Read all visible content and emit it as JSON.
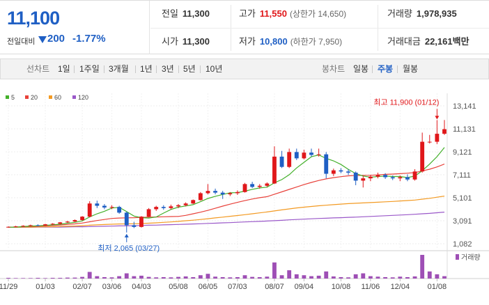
{
  "quote": {
    "price": "11,100",
    "change_label": "전일대비",
    "change_amount": "200",
    "change_rate": "-1.77%",
    "prev_label": "전일",
    "prev_value": "11,300",
    "open_label": "시가",
    "open_value": "11,300",
    "high_label": "고가",
    "high_value": "11,550",
    "upper_limit": "(상한가 14,650)",
    "low_label": "저가",
    "low_value": "10,800",
    "lower_limit": "(하한가 7,950)",
    "volume_label": "거래량",
    "volume_value": "1,978,935",
    "amount_label": "거래대금",
    "amount_value": "22,161",
    "amount_unit": "백만"
  },
  "toolbar": {
    "line_title": "선차트",
    "line_periods": [
      "1일",
      "1주일",
      "3개월",
      "1년",
      "3년",
      "5년",
      "10년"
    ],
    "candle_title": "봉차트",
    "candle_periods": [
      "일봉",
      "주봉",
      "월봉"
    ],
    "candle_active": "주봉"
  },
  "colors": {
    "up": "#e0171a",
    "down": "#1f5fc4",
    "ma5": "#43b02a",
    "ma20": "#e8413a",
    "ma60": "#f39a22",
    "ma120": "#9a58c9",
    "volume": "#9e4fb5"
  },
  "chart_data": {
    "type": "candlestick",
    "legend": [
      {
        "name": "5",
        "color": "#43b02a"
      },
      {
        "name": "20",
        "color": "#e8413a"
      },
      {
        "name": "60",
        "color": "#f39a22"
      },
      {
        "name": "120",
        "color": "#9a58c9"
      }
    ],
    "y_ticks": [
      13141,
      11131,
      9121,
      7111,
      5101,
      3091,
      1082
    ],
    "ylim": [
      1082,
      13141
    ],
    "x_labels": [
      "11/29",
      "01/03",
      "02/07",
      "03/06",
      "04/03",
      "05/08",
      "06/05",
      "07/03",
      "08/07",
      "09/04",
      "10/08",
      "11/06",
      "12/04",
      "01/08"
    ],
    "x_label_index": [
      0,
      5,
      10,
      14,
      18,
      23,
      27,
      31,
      36,
      40,
      45,
      49,
      53,
      58
    ],
    "annotation_high": {
      "text": "최고 11,900 (01/12)",
      "index": 58,
      "value": 11900
    },
    "annotation_low": {
      "text": "최저 2,065 (03/27)",
      "index": 16,
      "value": 2065
    },
    "volume_label": "거래량",
    "candles": [
      {
        "o": 2520,
        "h": 2600,
        "l": 2480,
        "c": 2560
      },
      {
        "o": 2560,
        "h": 2650,
        "l": 2520,
        "c": 2600
      },
      {
        "o": 2600,
        "h": 2700,
        "l": 2550,
        "c": 2650
      },
      {
        "o": 2650,
        "h": 2750,
        "l": 2600,
        "c": 2700
      },
      {
        "o": 2700,
        "h": 2780,
        "l": 2620,
        "c": 2680
      },
      {
        "o": 2680,
        "h": 2820,
        "l": 2650,
        "c": 2780
      },
      {
        "o": 2780,
        "h": 2880,
        "l": 2720,
        "c": 2830
      },
      {
        "o": 2830,
        "h": 2980,
        "l": 2780,
        "c": 2950
      },
      {
        "o": 2950,
        "h": 3080,
        "l": 2900,
        "c": 3020
      },
      {
        "o": 3020,
        "h": 3200,
        "l": 2980,
        "c": 3150
      },
      {
        "o": 3150,
        "h": 3500,
        "l": 3100,
        "c": 3450
      },
      {
        "o": 3450,
        "h": 4800,
        "l": 3400,
        "c": 4600
      },
      {
        "o": 4600,
        "h": 4850,
        "l": 4200,
        "c": 4400
      },
      {
        "o": 4400,
        "h": 4550,
        "l": 4100,
        "c": 4250
      },
      {
        "o": 4250,
        "h": 4450,
        "l": 4100,
        "c": 4300
      },
      {
        "o": 4300,
        "h": 4400,
        "l": 3700,
        "c": 3800
      },
      {
        "o": 3800,
        "h": 3900,
        "l": 2065,
        "c": 2700
      },
      {
        "o": 2700,
        "h": 3000,
        "l": 2450,
        "c": 2550
      },
      {
        "o": 2550,
        "h": 3500,
        "l": 2500,
        "c": 3450
      },
      {
        "o": 3450,
        "h": 4200,
        "l": 3400,
        "c": 4100
      },
      {
        "o": 4100,
        "h": 4400,
        "l": 3950,
        "c": 4300
      },
      {
        "o": 4300,
        "h": 4450,
        "l": 4050,
        "c": 4200
      },
      {
        "o": 4200,
        "h": 4500,
        "l": 4100,
        "c": 4350
      },
      {
        "o": 4350,
        "h": 4550,
        "l": 4200,
        "c": 4450
      },
      {
        "o": 4450,
        "h": 4700,
        "l": 4350,
        "c": 4600
      },
      {
        "o": 4600,
        "h": 4950,
        "l": 4550,
        "c": 4900
      },
      {
        "o": 4900,
        "h": 5600,
        "l": 4850,
        "c": 5500
      },
      {
        "o": 5500,
        "h": 6300,
        "l": 5400,
        "c": 5700
      },
      {
        "o": 5700,
        "h": 5900,
        "l": 5400,
        "c": 5550
      },
      {
        "o": 5550,
        "h": 5700,
        "l": 5000,
        "c": 5400
      },
      {
        "o": 5400,
        "h": 5600,
        "l": 5250,
        "c": 5500
      },
      {
        "o": 5500,
        "h": 5750,
        "l": 5350,
        "c": 5600
      },
      {
        "o": 5600,
        "h": 6400,
        "l": 5550,
        "c": 6300
      },
      {
        "o": 6300,
        "h": 6500,
        "l": 5950,
        "c": 6050
      },
      {
        "o": 6050,
        "h": 6300,
        "l": 5900,
        "c": 6150
      },
      {
        "o": 6150,
        "h": 6450,
        "l": 6050,
        "c": 6350
      },
      {
        "o": 6350,
        "h": 9600,
        "l": 6300,
        "c": 8700
      },
      {
        "o": 8700,
        "h": 9200,
        "l": 7700,
        "c": 7800
      },
      {
        "o": 7800,
        "h": 9400,
        "l": 7700,
        "c": 9100
      },
      {
        "o": 9100,
        "h": 9400,
        "l": 8400,
        "c": 8550
      },
      {
        "o": 8550,
        "h": 9300,
        "l": 8450,
        "c": 9050
      },
      {
        "o": 9050,
        "h": 9400,
        "l": 8700,
        "c": 8850
      },
      {
        "o": 8850,
        "h": 9400,
        "l": 8700,
        "c": 8900
      },
      {
        "o": 8900,
        "h": 9100,
        "l": 6800,
        "c": 7200
      },
      {
        "o": 7200,
        "h": 7650,
        "l": 7000,
        "c": 7500
      },
      {
        "o": 7500,
        "h": 7700,
        "l": 7250,
        "c": 7400
      },
      {
        "o": 7400,
        "h": 7600,
        "l": 7100,
        "c": 7300
      },
      {
        "o": 7300,
        "h": 7400,
        "l": 6200,
        "c": 6600
      },
      {
        "o": 6600,
        "h": 7000,
        "l": 6000,
        "c": 6800
      },
      {
        "o": 6800,
        "h": 7100,
        "l": 6550,
        "c": 6950
      },
      {
        "o": 6950,
        "h": 7300,
        "l": 6800,
        "c": 7100
      },
      {
        "o": 7100,
        "h": 7250,
        "l": 6750,
        "c": 6900
      },
      {
        "o": 6900,
        "h": 7050,
        "l": 6650,
        "c": 6800
      },
      {
        "o": 6800,
        "h": 7050,
        "l": 6550,
        "c": 6900
      },
      {
        "o": 6900,
        "h": 7150,
        "l": 6550,
        "c": 6700
      },
      {
        "o": 6700,
        "h": 7600,
        "l": 6600,
        "c": 7400
      },
      {
        "o": 7400,
        "h": 10800,
        "l": 7300,
        "c": 10000
      },
      {
        "o": 10000,
        "h": 10600,
        "l": 9850,
        "c": 10000
      },
      {
        "o": 10000,
        "h": 11900,
        "l": 9800,
        "c": 10700
      },
      {
        "o": 10700,
        "h": 11900,
        "l": 10600,
        "c": 11100
      }
    ],
    "ma5": [
      2520,
      2540,
      2580,
      2630,
      2650,
      2690,
      2730,
      2790,
      2870,
      2950,
      3080,
      3420,
      3700,
      3920,
      4200,
      4270,
      3890,
      3500,
      3360,
      3330,
      3420,
      3760,
      4080,
      4280,
      4380,
      4500,
      4760,
      5040,
      5230,
      5390,
      5540,
      5550,
      5680,
      5840,
      5960,
      6030,
      6410,
      6690,
      7120,
      7710,
      8200,
      8690,
      8850,
      8540,
      8330,
      8010,
      7580,
      7220,
      7000,
      6900,
      6960,
      7000,
      6960,
      6960,
      6870,
      7000,
      7470,
      8050,
      8700,
      9500
    ],
    "ma20": [
      2520,
      2530,
      2560,
      2590,
      2610,
      2640,
      2670,
      2720,
      2770,
      2820,
      2890,
      3000,
      3110,
      3200,
      3290,
      3330,
      3350,
      3360,
      3390,
      3410,
      3420,
      3440,
      3460,
      3470,
      3560,
      3700,
      3840,
      4000,
      4180,
      4370,
      4540,
      4700,
      4850,
      4990,
      5110,
      5200,
      5410,
      5620,
      5830,
      6040,
      6250,
      6440,
      6610,
      6750,
      6860,
      6950,
      7020,
      7050,
      7060,
      7070,
      7100,
      7150,
      7170,
      7210,
      7250,
      7300,
      7450,
      7600,
      7800,
      8050
    ],
    "ma60": [
      2520,
      2520,
      2530,
      2540,
      2550,
      2560,
      2570,
      2590,
      2610,
      2630,
      2660,
      2700,
      2730,
      2760,
      2790,
      2810,
      2820,
      2830,
      2850,
      2880,
      2910,
      2950,
      2990,
      3040,
      3090,
      3140,
      3200,
      3270,
      3340,
      3410,
      3480,
      3550,
      3620,
      3700,
      3780,
      3860,
      3950,
      4040,
      4130,
      4210,
      4280,
      4340,
      4400,
      4450,
      4500,
      4550,
      4590,
      4620,
      4650,
      4680,
      4710,
      4750,
      4780,
      4820,
      4860,
      4900,
      4980,
      5050,
      5150,
      5250
    ],
    "ma120": [
      2520,
      2520,
      2520,
      2520,
      2530,
      2530,
      2540,
      2540,
      2550,
      2560,
      2570,
      2580,
      2590,
      2610,
      2620,
      2640,
      2650,
      2660,
      2680,
      2700,
      2710,
      2730,
      2750,
      2770,
      2790,
      2810,
      2830,
      2860,
      2880,
      2910,
      2930,
      2960,
      2990,
      3010,
      3040,
      3070,
      3100,
      3130,
      3170,
      3200,
      3230,
      3260,
      3290,
      3310,
      3340,
      3360,
      3390,
      3410,
      3440,
      3470,
      3500,
      3530,
      3560,
      3590,
      3620,
      3660,
      3700,
      3740,
      3790,
      3850
    ],
    "volume": [
      3,
      2,
      2,
      2,
      3,
      2,
      3,
      3,
      4,
      4,
      7,
      28,
      10,
      6,
      5,
      10,
      22,
      10,
      12,
      7,
      5,
      6,
      5,
      7,
      9,
      6,
      14,
      20,
      8,
      6,
      5,
      6,
      14,
      7,
      6,
      8,
      68,
      14,
      35,
      18,
      14,
      10,
      12,
      30,
      9,
      6,
      5,
      18,
      22,
      10,
      8,
      6,
      5,
      8,
      6,
      9,
      100,
      30,
      18,
      10
    ]
  }
}
